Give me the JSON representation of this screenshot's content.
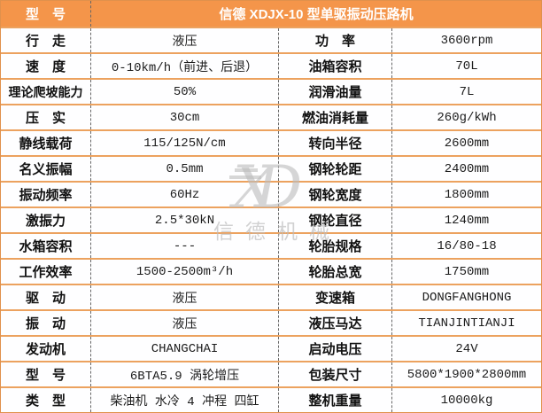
{
  "header": {
    "model_label": "型　号",
    "title": "信德 XDJX-10 型单驱振动压路机"
  },
  "rows": [
    {
      "ll": "行　走",
      "lv": "液压",
      "rl": "功　率",
      "rv": "3600rpm"
    },
    {
      "ll": "速　度",
      "lv": "0-10km/h（前进、后退）",
      "rl": "油箱容积",
      "rv": "70L"
    },
    {
      "ll": "理论爬坡能力",
      "lv": "50%",
      "rl": "润滑油量",
      "rv": "7L"
    },
    {
      "ll": "压　实",
      "lv": "30cm",
      "rl": "燃油消耗量",
      "rv": "260g/kWh"
    },
    {
      "ll": "静线载荷",
      "lv": "115/125N/cm",
      "rl": "转向半径",
      "rv": "2600mm"
    },
    {
      "ll": "名义振幅",
      "lv": "0.5mm",
      "rl": "钢轮轮距",
      "rv": "2400mm"
    },
    {
      "ll": "振动频率",
      "lv": "60Hz",
      "rl": "钢轮宽度",
      "rv": "1800mm"
    },
    {
      "ll": "激振力",
      "lv": "2.5*30kN",
      "rl": "钢轮直径",
      "rv": "1240mm"
    },
    {
      "ll": "水箱容积",
      "lv": "---",
      "rl": "轮胎规格",
      "rv": "16/80-18"
    },
    {
      "ll": "工作效率",
      "lv": "1500-2500m³/h",
      "rl": "轮胎总宽",
      "rv": "1750mm"
    },
    {
      "ll": "驱　动",
      "lv": "液压",
      "rl": "变速箱",
      "rv": "DONGFANGHONG"
    },
    {
      "ll": "振　动",
      "lv": "液压",
      "rl": "液压马达",
      "rv": "TIANJINTIANJI"
    },
    {
      "ll": "发动机",
      "lv": "CHANGCHAI",
      "rl": "启动电压",
      "rv": "24V"
    },
    {
      "ll": "型　号",
      "lv": "6BTA5.9 涡轮增压",
      "rl": "包装尺寸",
      "rv": "5800*1900*2800mm"
    },
    {
      "ll": "类　型",
      "lv": "柴油机 水冷 4 冲程 四缸",
      "rl": "整机重量",
      "rv": "10000kg"
    }
  ],
  "watermark": {
    "monogram": "XD",
    "name": "信德机械"
  },
  "colors": {
    "header_bg": "#F4954A",
    "header_text": "#FFFFFF",
    "row_line": "#ECA25F",
    "outer_border": "#E0914C",
    "divider": "#666666",
    "watermark": "#BDBDBD",
    "text": "#111111"
  }
}
